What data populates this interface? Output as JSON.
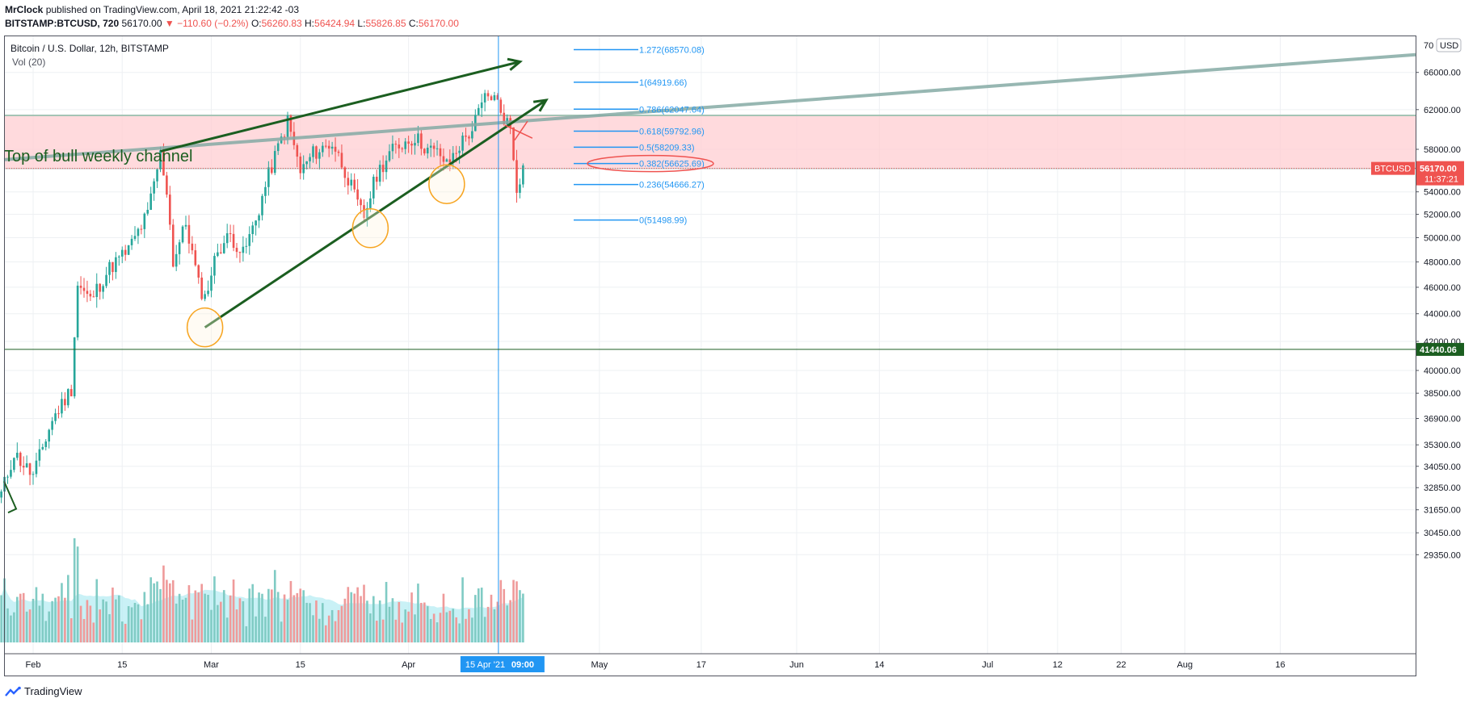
{
  "header": {
    "author": "MrClock",
    "published_text": "published on TradingView.com, April 18, 2021 21:22:42 -03",
    "symbol": "BITSTAMP:BTCUSD, 720",
    "last": "56170.00",
    "change": "▼ −110.60 (−0.2%)",
    "o_label": "O:",
    "o_value": "56260.83",
    "h_label": "H:",
    "h_value": "56424.94",
    "l_label": "L:",
    "l_value": "55826.85",
    "c_label": "C:",
    "c_value": "56170.00"
  },
  "legend": {
    "title": "Bitcoin / U.S. Dollar, 12h, BITSTAMP",
    "volume": "Vol (20)"
  },
  "footer": {
    "brand": "TradingView"
  },
  "colors": {
    "up": "#26a69a",
    "down": "#ef5350",
    "fib": "#2196f3",
    "trend": "#1b5e20",
    "channel_fill": "#ffcdd2",
    "circle": "#f7a521",
    "crosshair": "#2196f3",
    "support": "#1b5e20",
    "channel_line": "#8e8e8e",
    "long_line": "#86aba5"
  },
  "chart_data": {
    "type": "candlestick",
    "title": "Bitcoin / U.S. Dollar, 12h, BITSTAMP",
    "currency": "USD",
    "y_scale": "log",
    "ylim": [
      28900,
      71000
    ],
    "y_ticks": [
      29350,
      30450,
      31650,
      32850,
      34050,
      35300,
      36900,
      38500,
      40000,
      42000,
      44000,
      46000,
      48000,
      50000,
      52000,
      54000,
      58000,
      62000,
      66000
    ],
    "y_tick_labels": [
      "29350.00",
      "30450.00",
      "31650.00",
      "32850.00",
      "34050.00",
      "35300.00",
      "36900.00",
      "38500.00",
      "40000.00",
      "42000.00",
      "44000.00",
      "46000.00",
      "48000.00",
      "50000.00",
      "52000.00",
      "54000.00",
      "58000.00",
      "62000.00",
      "66000.00"
    ],
    "y_top_label": "70",
    "x_ticks": [
      "Feb",
      "15",
      "Mar",
      "15",
      "Apr",
      "May",
      "17",
      "Jun",
      "14",
      "Jul",
      "12",
      "22",
      "Aug",
      "16"
    ],
    "crosshair_label": "15 Apr '21",
    "crosshair_time": "09:00",
    "last_price": {
      "symbol": "BTCUSD",
      "value": "56170.00",
      "countdown": "11:37:21",
      "price": 56170
    },
    "support_level": {
      "value": "41440.06",
      "price": 41440.06
    },
    "annotation": "Top of bull weekly channel",
    "channel_zone": [
      56150,
      61400
    ],
    "fib_levels": [
      {
        "ratio": "1.272",
        "price": 68570.08,
        "label": "1.272(68570.08)"
      },
      {
        "ratio": "1",
        "price": 64919.66,
        "label": "1(64919.66)"
      },
      {
        "ratio": "0.786",
        "price": 62047.64,
        "label": "0.786(62047.64)"
      },
      {
        "ratio": "0.618",
        "price": 59792.96,
        "label": "0.618(59792.96)"
      },
      {
        "ratio": "0.5",
        "price": 58209.33,
        "label": "0.5(58209.33)"
      },
      {
        "ratio": "0.382",
        "price": 56625.69,
        "label": "0.382(56625.69)"
      },
      {
        "ratio": "0.236",
        "price": 54666.27,
        "label": "0.236(54666.27)"
      },
      {
        "ratio": "0",
        "price": 51498.99,
        "label": "0(51498.99)"
      }
    ],
    "price_waypoints": [
      [
        "2021-01-27",
        32500
      ],
      [
        "2021-01-29",
        34800
      ],
      [
        "2021-02-01",
        33500
      ],
      [
        "2021-02-04",
        36800
      ],
      [
        "2021-02-07",
        38800
      ],
      [
        "2021-02-08",
        46200
      ],
      [
        "2021-02-10",
        45000
      ],
      [
        "2021-02-13",
        47500
      ],
      [
        "2021-02-16",
        49000
      ],
      [
        "2021-02-19",
        52000
      ],
      [
        "2021-02-21",
        57500
      ],
      [
        "2021-02-22",
        54200
      ],
      [
        "2021-02-23",
        48000
      ],
      [
        "2021-02-25",
        51200
      ],
      [
        "2021-02-27",
        46200
      ],
      [
        "2021-02-28",
        45200
      ],
      [
        "2021-03-02",
        49000
      ],
      [
        "2021-03-04",
        50200
      ],
      [
        "2021-03-06",
        48600
      ],
      [
        "2021-03-08",
        51500
      ],
      [
        "2021-03-10",
        55500
      ],
      [
        "2021-03-13",
        60800
      ],
      [
        "2021-03-15",
        55800
      ],
      [
        "2021-03-17",
        57600
      ],
      [
        "2021-03-20",
        58600
      ],
      [
        "2021-03-22",
        56000
      ],
      [
        "2021-03-24",
        52800
      ],
      [
        "2021-03-25",
        51800
      ],
      [
        "2021-03-27",
        55600
      ],
      [
        "2021-03-29",
        57600
      ],
      [
        "2021-03-31",
        58600
      ],
      [
        "2021-04-02",
        59200
      ],
      [
        "2021-04-04",
        58000
      ],
      [
        "2021-04-06",
        57500
      ],
      [
        "2021-04-07",
        56400
      ],
      [
        "2021-04-09",
        58400
      ],
      [
        "2021-04-11",
        60000
      ],
      [
        "2021-04-13",
        63200
      ],
      [
        "2021-04-14",
        63500
      ],
      [
        "2021-04-15",
        62700
      ],
      [
        "2021-04-16",
        61200
      ],
      [
        "2021-04-17",
        60200
      ],
      [
        "2021-04-18",
        54500
      ],
      [
        "2021-04-19",
        56170
      ]
    ],
    "volume_note": "volume bars with 20-period moving average area, unscaled"
  }
}
